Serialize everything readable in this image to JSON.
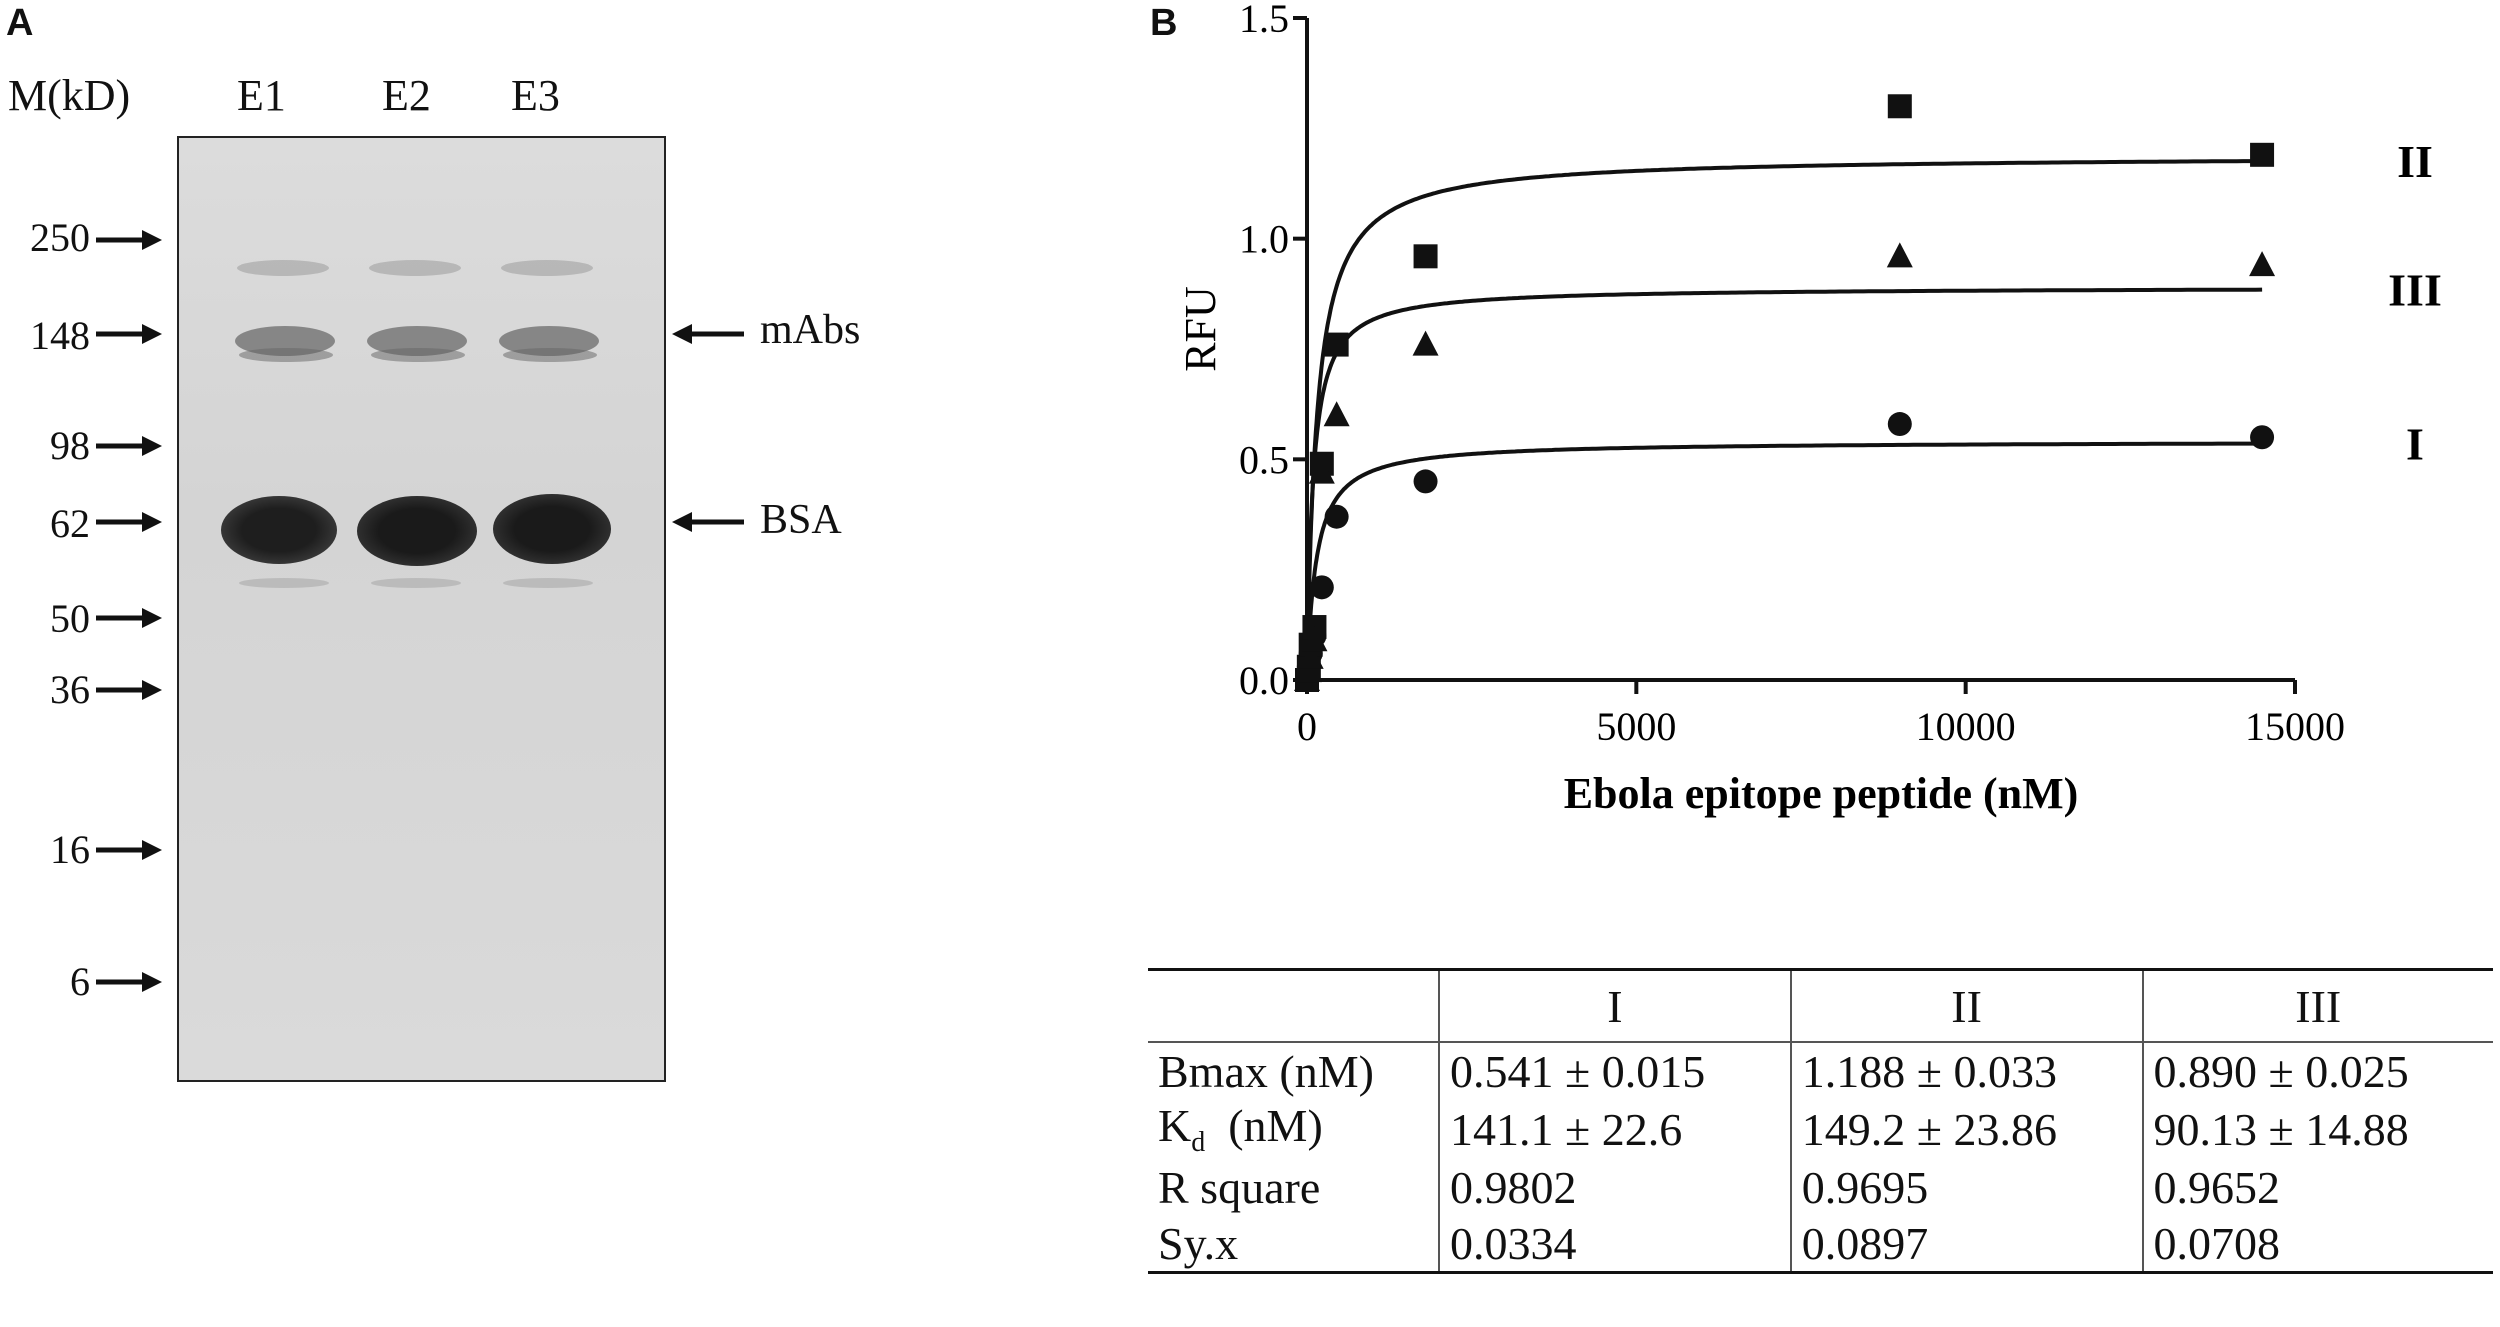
{
  "panel_a": {
    "letter": "A",
    "marker_header": "M(kD)",
    "lanes": [
      "E1",
      "E2",
      "E3"
    ],
    "markers": [
      "250",
      "148",
      "98",
      "62",
      "50",
      "36",
      "16",
      "6"
    ],
    "bands": [
      {
        "label": "mAbs"
      },
      {
        "label": "BSA"
      }
    ]
  },
  "panel_b": {
    "letter": "B",
    "table": {
      "headers": [
        "",
        "I",
        "II",
        "III"
      ],
      "rows": [
        {
          "label": "Bmax  (nM)",
          "values": [
            "0.541 ± 0.015",
            "1.188 ± 0.033",
            "0.890 ± 0.025"
          ]
        },
        {
          "label_main": "K",
          "label_sub": "d",
          "label_rest": "  (nM)",
          "values": [
            "141.1 ± 22.6",
            "149.2 ± 23.86",
            "90.13 ± 14.88"
          ]
        },
        {
          "label": "R square",
          "values": [
            "0.9802",
            "0.9695",
            "0.9652"
          ]
        },
        {
          "label": "Sy.x",
          "values": [
            "0.0334",
            "0.0897",
            "0.0708"
          ]
        }
      ]
    }
  },
  "chart_data": {
    "type": "scatter",
    "title": "",
    "xlabel": "Ebola epitope peptide (nM)",
    "ylabel": "RFU",
    "xlim": [
      0,
      15000
    ],
    "ylim": [
      0,
      1.5
    ],
    "xticks": [
      "0",
      "5000",
      "10000",
      "15000"
    ],
    "yticks": [
      "0.0",
      "0.5",
      "1.0",
      "1.5"
    ],
    "grid": false,
    "series": [
      {
        "name": "I",
        "marker": "circle",
        "Bmax": 0.541,
        "Kd": 141.1,
        "x": [
          0,
          28,
          56,
          113,
          225,
          450,
          1800,
          9000,
          14500
        ],
        "y": [
          0.0,
          0.03,
          0.06,
          0.1,
          0.21,
          0.37,
          0.45,
          0.58,
          0.55
        ]
      },
      {
        "name": "II",
        "marker": "square",
        "Bmax": 1.188,
        "Kd": 149.2,
        "x": [
          0,
          28,
          56,
          113,
          225,
          450,
          1800,
          9000,
          14500
        ],
        "y": [
          0.0,
          0.03,
          0.08,
          0.12,
          0.49,
          0.76,
          0.96,
          1.3,
          1.19
        ]
      },
      {
        "name": "III",
        "marker": "triangle",
        "Bmax": 0.89,
        "Kd": 90.13,
        "x": [
          0,
          28,
          56,
          113,
          225,
          450,
          1800,
          9000,
          14500
        ],
        "y": [
          0.0,
          0.02,
          0.05,
          0.09,
          0.47,
          0.6,
          0.76,
          0.96,
          0.94
        ]
      }
    ]
  }
}
